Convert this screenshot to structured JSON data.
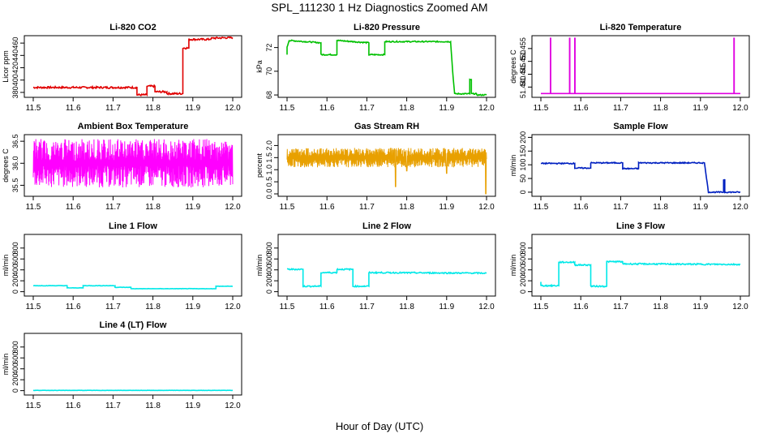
{
  "figure": {
    "title": "SPL_111230  1 Hz Diagnostics Zoomed AM",
    "xlabel": "Hour of Day (UTC)"
  },
  "chart_data": [
    {
      "type": "line",
      "title": "Li-820 CO2",
      "ylabel": "Licor ppm",
      "color": "#e00000",
      "xlim": [
        11.5,
        12.0
      ],
      "ylim": [
        372,
        472
      ],
      "x_ticks": [
        "11.5",
        "11.6",
        "11.7",
        "11.8",
        "11.9",
        "12.0"
      ],
      "y_ticks": [
        380,
        400,
        420,
        440,
        460
      ],
      "series": [
        {
          "x": [
            11.5,
            11.76,
            11.76,
            11.785,
            11.785,
            11.805,
            11.805,
            11.835,
            11.835,
            11.875,
            11.875,
            11.89,
            11.89,
            11.94,
            11.95,
            12.0
          ],
          "y": [
            388,
            388,
            376,
            376,
            390,
            390,
            381,
            381,
            378,
            378,
            452,
            452,
            466,
            466,
            468,
            469
          ]
        }
      ],
      "noise": 1.5
    },
    {
      "type": "line",
      "title": "Li-820 Pressure",
      "ylabel": "kPa",
      "color": "#00c000",
      "xlim": [
        11.5,
        12.0
      ],
      "ylim": [
        67.8,
        73.0
      ],
      "x_ticks": [
        "11.5",
        "11.6",
        "11.7",
        "11.8",
        "11.9",
        "12.0"
      ],
      "y_ticks": [
        68,
        70,
        72
      ],
      "series": [
        {
          "x": [
            11.5,
            11.5,
            11.505,
            11.585,
            11.585,
            11.625,
            11.625,
            11.705,
            11.705,
            11.745,
            11.745,
            11.91,
            11.91,
            11.915,
            11.92,
            11.958,
            11.958,
            11.962,
            11.962,
            11.975,
            11.975,
            12.0
          ],
          "y": [
            71.4,
            72.0,
            72.6,
            72.4,
            71.4,
            71.4,
            72.6,
            72.4,
            71.4,
            71.4,
            72.5,
            72.5,
            72.5,
            70.0,
            68.1,
            68.1,
            69.3,
            69.3,
            68.1,
            68.1,
            68.0,
            68.0
          ]
        }
      ],
      "noise": 0.05
    },
    {
      "type": "line",
      "title": "Li-820 Temperature",
      "ylabel": "degrees C",
      "color": "#e000e0",
      "xlim": [
        11.5,
        12.0
      ],
      "ylim": [
        51.436,
        51.46
      ],
      "y_tick_labels": [
        "51.440",
        "51.445",
        "51.450",
        "51.455"
      ],
      "y_ticks": [
        51.44,
        51.445,
        51.45,
        51.455
      ],
      "x_ticks": [
        "11.5",
        "11.6",
        "11.7",
        "11.8",
        "11.9",
        "12.0"
      ],
      "series": [
        {
          "x": [
            11.5,
            11.524,
            11.524,
            11.5245,
            11.5245,
            11.572,
            11.572,
            11.5725,
            11.5725,
            11.585,
            11.585,
            11.5855,
            11.5855,
            11.984,
            11.984,
            11.9845,
            11.9845,
            12.0
          ],
          "y": [
            51.4375,
            51.4375,
            51.459,
            51.459,
            51.4375,
            51.4375,
            51.459,
            51.459,
            51.4375,
            51.4375,
            51.459,
            51.459,
            51.4375,
            51.4375,
            51.459,
            51.459,
            51.4375,
            51.4375
          ]
        }
      ],
      "noise": 0
    },
    {
      "type": "line",
      "title": "Ambient Box Temperature",
      "ylabel": "degrees C",
      "color": "#ff00ff",
      "xlim": [
        11.5,
        12.0
      ],
      "ylim": [
        35.25,
        36.65
      ],
      "x_ticks": [
        "11.5",
        "11.6",
        "11.7",
        "11.8",
        "11.9",
        "12.0"
      ],
      "y_ticks": [
        35.5,
        36.0,
        36.5
      ],
      "y_tick_labels": [
        "35.5",
        "36.0",
        "36.5"
      ],
      "series": [
        {
          "x": [
            11.5,
            12.0
          ],
          "y": [
            35.95,
            35.95
          ]
        }
      ],
      "osc": {
        "low": 35.45,
        "high": 36.55,
        "density": 700
      }
    },
    {
      "type": "line",
      "title": "Gas Stream RH",
      "ylabel": "percent",
      "color": "#e8a000",
      "xlim": [
        11.5,
        12.0
      ],
      "ylim": [
        -0.1,
        2.45
      ],
      "x_ticks": [
        "11.5",
        "11.6",
        "11.7",
        "11.8",
        "11.9",
        "12.0"
      ],
      "y_ticks": [
        0.0,
        0.5,
        1.0,
        1.5,
        2.0
      ],
      "y_tick_labels": [
        "0.0",
        "0.5",
        "1.0",
        "1.5",
        "2.0"
      ],
      "series": [
        {
          "x": [
            11.5,
            12.0
          ],
          "y": [
            1.5,
            1.5
          ]
        }
      ],
      "osc": {
        "low": 1.1,
        "high": 1.9,
        "density": 800,
        "dips": [
          [
            11.772,
            0.3
          ],
          [
            11.8,
            0.95
          ],
          [
            11.998,
            0.0
          ],
          [
            11.9,
            0.85
          ]
        ]
      }
    },
    {
      "type": "line",
      "title": "Sample Flow",
      "ylabel": "ml/min",
      "color": "#0020c0",
      "xlim": [
        11.5,
        12.0
      ],
      "ylim": [
        -15,
        210
      ],
      "x_ticks": [
        "11.5",
        "11.6",
        "11.7",
        "11.8",
        "11.9",
        "12.0"
      ],
      "y_ticks": [
        0,
        50,
        100,
        150,
        200
      ],
      "series": [
        {
          "x": [
            11.5,
            11.585,
            11.585,
            11.625,
            11.625,
            11.705,
            11.705,
            11.745,
            11.745,
            11.91,
            11.91,
            11.92,
            11.958,
            11.958,
            11.961,
            11.961,
            11.975,
            12.0
          ],
          "y": [
            105,
            105,
            88,
            88,
            107,
            107,
            86,
            86,
            107,
            107,
            107,
            0,
            0,
            45,
            45,
            0,
            0,
            0
          ]
        }
      ],
      "noise": 2
    },
    {
      "type": "line",
      "title": "Line 1 Flow",
      "ylabel": "ml/min",
      "color": "#00e8e8",
      "xlim": [
        11.5,
        12.0
      ],
      "ylim": [
        -80,
        1050
      ],
      "x_ticks": [
        "11.5",
        "11.6",
        "11.7",
        "11.8",
        "11.9",
        "12.0"
      ],
      "y_ticks": [
        0,
        200,
        400,
        600,
        800
      ],
      "series": [
        {
          "x": [
            11.5,
            11.585,
            11.585,
            11.625,
            11.625,
            11.705,
            11.705,
            11.745,
            11.745,
            11.958,
            11.958,
            12.0
          ],
          "y": [
            110,
            110,
            70,
            70,
            110,
            110,
            80,
            80,
            55,
            55,
            100,
            100
          ]
        }
      ],
      "noise": 3
    },
    {
      "type": "line",
      "title": "Line 2 Flow",
      "ylabel": "ml/min",
      "color": "#00e8e8",
      "xlim": [
        11.5,
        12.0
      ],
      "ylim": [
        -80,
        1050
      ],
      "x_ticks": [
        "11.5",
        "11.6",
        "11.7",
        "11.8",
        "11.9",
        "12.0"
      ],
      "y_ticks": [
        0,
        200,
        400,
        600,
        800
      ],
      "series": [
        {
          "x": [
            11.5,
            11.54,
            11.54,
            11.585,
            11.585,
            11.625,
            11.625,
            11.665,
            11.665,
            11.705,
            11.705,
            12.0
          ],
          "y": [
            410,
            410,
            100,
            100,
            350,
            350,
            410,
            410,
            100,
            100,
            350,
            340
          ]
        }
      ],
      "noise": 12
    },
    {
      "type": "line",
      "title": "Line 3 Flow",
      "ylabel": "ml/min",
      "color": "#00e8e8",
      "xlim": [
        11.5,
        12.0
      ],
      "ylim": [
        -80,
        1050
      ],
      "x_ticks": [
        "11.5",
        "11.6",
        "11.7",
        "11.8",
        "11.9",
        "12.0"
      ],
      "y_ticks": [
        0,
        200,
        400,
        600,
        800
      ],
      "series": [
        {
          "x": [
            11.5,
            11.5,
            11.505,
            11.505,
            11.545,
            11.545,
            11.585,
            11.585,
            11.625,
            11.625,
            11.665,
            11.665,
            11.705,
            11.705,
            12.0
          ],
          "y": [
            180,
            110,
            110,
            110,
            110,
            540,
            540,
            490,
            490,
            100,
            100,
            550,
            550,
            510,
            500
          ]
        }
      ],
      "noise": 12
    },
    {
      "type": "line",
      "title": "Line 4 (LT) Flow",
      "ylabel": "ml/min",
      "color": "#00e8e8",
      "xlim": [
        11.5,
        12.0
      ],
      "ylim": [
        -80,
        1050
      ],
      "x_ticks": [
        "11.5",
        "11.6",
        "11.7",
        "11.8",
        "11.9",
        "12.0"
      ],
      "y_ticks": [
        0,
        200,
        400,
        600,
        800
      ],
      "series": [
        {
          "x": [
            11.5,
            12.0
          ],
          "y": [
            5,
            5
          ]
        }
      ],
      "noise": 2
    }
  ]
}
